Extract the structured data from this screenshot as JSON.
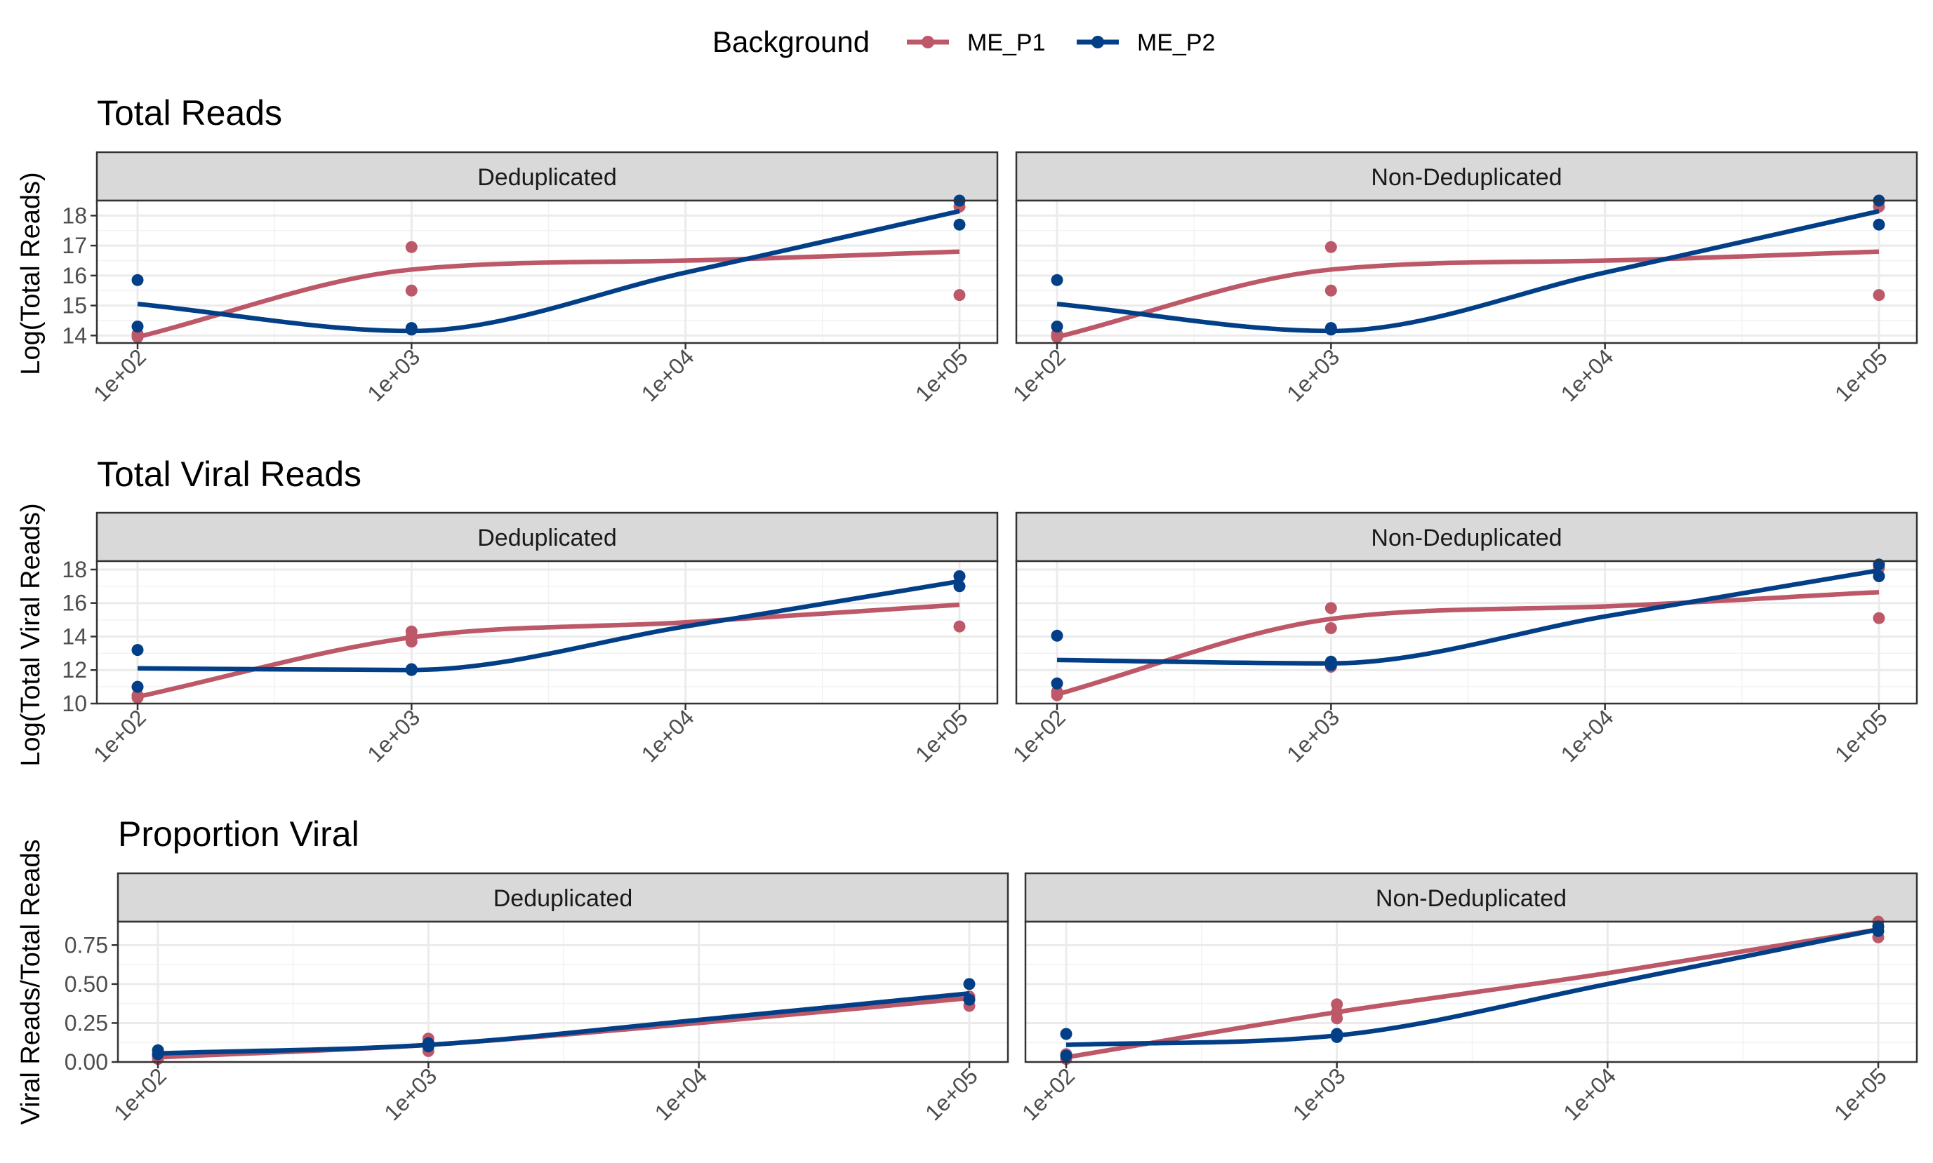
{
  "legend": {
    "title": "Background",
    "items": [
      {
        "label": "ME_P1",
        "color": "#BC5868"
      },
      {
        "label": "ME_P2",
        "color": "#023F87"
      }
    ]
  },
  "facet_labels": [
    "Deduplicated",
    "Non-Deduplicated"
  ],
  "chart_data": [
    {
      "type": "scatter",
      "title": "Total Reads",
      "ylabel": "Log(Total Reads)",
      "x_scale": "log10",
      "x_ticks": [
        100,
        1000,
        10000,
        100000
      ],
      "x_tick_labels": [
        "1e+02",
        "1e+03",
        "1e+04",
        "1e+05"
      ],
      "ylim": [
        13.75,
        18.5
      ],
      "y_ticks": [
        14,
        15,
        16,
        17,
        18
      ],
      "y_tick_labels": [
        "14",
        "15",
        "16",
        "17",
        "18"
      ],
      "grid": true,
      "facets": [
        {
          "label": "Deduplicated",
          "series": [
            {
              "name": "ME_P1",
              "points": [
                [
                  100,
                  13.95
                ],
                [
                  100,
                  14.05
                ],
                [
                  1000,
                  16.95
                ],
                [
                  1000,
                  15.5
                ],
                [
                  1000,
                  14.2
                ],
                [
                  100000,
                  18.3
                ],
                [
                  100000,
                  15.35
                ]
              ],
              "trend": [
                [
                  100,
                  13.95
                ],
                [
                  1000,
                  16.2
                ],
                [
                  10000,
                  16.5
                ],
                [
                  100000,
                  16.8
                ]
              ]
            },
            {
              "name": "ME_P2",
              "points": [
                [
                  100,
                  15.85
                ],
                [
                  100,
                  14.3
                ],
                [
                  1000,
                  14.2
                ],
                [
                  1000,
                  14.25
                ],
                [
                  100000,
                  18.5
                ],
                [
                  100000,
                  17.7
                ]
              ],
              "trend": [
                [
                  100,
                  15.05
                ],
                [
                  1000,
                  14.15
                ],
                [
                  10000,
                  16.1
                ],
                [
                  100000,
                  18.15
                ]
              ]
            }
          ]
        },
        {
          "label": "Non-Deduplicated",
          "series": [
            {
              "name": "ME_P1",
              "points": [
                [
                  100,
                  13.95
                ],
                [
                  100,
                  14.05
                ],
                [
                  1000,
                  16.95
                ],
                [
                  1000,
                  15.5
                ],
                [
                  1000,
                  14.2
                ],
                [
                  100000,
                  18.3
                ],
                [
                  100000,
                  15.35
                ]
              ],
              "trend": [
                [
                  100,
                  13.95
                ],
                [
                  1000,
                  16.2
                ],
                [
                  10000,
                  16.5
                ],
                [
                  100000,
                  16.8
                ]
              ]
            },
            {
              "name": "ME_P2",
              "points": [
                [
                  100,
                  15.85
                ],
                [
                  100,
                  14.3
                ],
                [
                  1000,
                  14.2
                ],
                [
                  1000,
                  14.25
                ],
                [
                  100000,
                  18.5
                ],
                [
                  100000,
                  17.7
                ]
              ],
              "trend": [
                [
                  100,
                  15.05
                ],
                [
                  1000,
                  14.15
                ],
                [
                  10000,
                  16.1
                ],
                [
                  100000,
                  18.15
                ]
              ]
            }
          ]
        }
      ]
    },
    {
      "type": "scatter",
      "title": "Total Viral Reads",
      "ylabel": "Log(Total Viral Reads)",
      "x_scale": "log10",
      "x_ticks": [
        100,
        1000,
        10000,
        100000
      ],
      "x_tick_labels": [
        "1e+02",
        "1e+03",
        "1e+04",
        "1e+05"
      ],
      "ylim": [
        10,
        18.5
      ],
      "y_ticks": [
        10,
        12,
        14,
        16,
        18
      ],
      "y_tick_labels": [
        "10",
        "12",
        "14",
        "16",
        "18"
      ],
      "grid": true,
      "facets": [
        {
          "label": "Deduplicated",
          "series": [
            {
              "name": "ME_P1",
              "points": [
                [
                  100,
                  10.35
                ],
                [
                  100,
                  10.5
                ],
                [
                  1000,
                  14.3
                ],
                [
                  1000,
                  14.0
                ],
                [
                  1000,
                  13.7
                ],
                [
                  100000,
                  17.6
                ],
                [
                  100000,
                  14.6
                ]
              ],
              "trend": [
                [
                  100,
                  10.4
                ],
                [
                  1000,
                  13.95
                ],
                [
                  10000,
                  14.85
                ],
                [
                  100000,
                  15.9
                ]
              ]
            },
            {
              "name": "ME_P2",
              "points": [
                [
                  100,
                  13.2
                ],
                [
                  100,
                  11.0
                ],
                [
                  1000,
                  12.0
                ],
                [
                  1000,
                  12.05
                ],
                [
                  100000,
                  17.6
                ],
                [
                  100000,
                  17.0
                ]
              ],
              "trend": [
                [
                  100,
                  12.1
                ],
                [
                  1000,
                  12.0
                ],
                [
                  10000,
                  14.6
                ],
                [
                  100000,
                  17.3
                ]
              ]
            }
          ]
        },
        {
          "label": "Non-Deduplicated",
          "series": [
            {
              "name": "ME_P1",
              "points": [
                [
                  100,
                  10.5
                ],
                [
                  100,
                  10.7
                ],
                [
                  1000,
                  15.7
                ],
                [
                  1000,
                  14.5
                ],
                [
                  1000,
                  12.2
                ],
                [
                  100000,
                  18.1
                ],
                [
                  100000,
                  15.1
                ]
              ],
              "trend": [
                [
                  100,
                  10.55
                ],
                [
                  1000,
                  15.05
                ],
                [
                  10000,
                  15.8
                ],
                [
                  100000,
                  16.65
                ]
              ]
            },
            {
              "name": "ME_P2",
              "points": [
                [
                  100,
                  14.05
                ],
                [
                  100,
                  11.2
                ],
                [
                  1000,
                  12.5
                ],
                [
                  1000,
                  12.3
                ],
                [
                  100000,
                  18.3
                ],
                [
                  100000,
                  17.6
                ]
              ],
              "trend": [
                [
                  100,
                  12.6
                ],
                [
                  1000,
                  12.4
                ],
                [
                  10000,
                  15.2
                ],
                [
                  100000,
                  17.95
                ]
              ]
            }
          ]
        }
      ]
    },
    {
      "type": "scatter",
      "title": "Proportion Viral",
      "ylabel": "Viral Reads/Total Reads",
      "x_scale": "log10",
      "x_ticks": [
        100,
        1000,
        10000,
        100000
      ],
      "x_tick_labels": [
        "1e+02",
        "1e+03",
        "1e+04",
        "1e+05"
      ],
      "ylim": [
        0,
        0.9
      ],
      "y_ticks": [
        0,
        0.25,
        0.5,
        0.75
      ],
      "y_tick_labels": [
        "0.00",
        "0.25",
        "0.50",
        "0.75"
      ],
      "grid": true,
      "facets": [
        {
          "label": "Deduplicated",
          "series": [
            {
              "name": "ME_P1",
              "points": [
                [
                  100,
                  0.02
                ],
                [
                  100,
                  0.04
                ],
                [
                  1000,
                  0.15
                ],
                [
                  1000,
                  0.12
                ],
                [
                  1000,
                  0.07
                ],
                [
                  100000,
                  0.36
                ],
                [
                  100000,
                  0.42
                ]
              ],
              "trend": [
                [
                  100,
                  0.03
                ],
                [
                  1000,
                  0.11
                ],
                [
                  10000,
                  0.25
                ],
                [
                  100000,
                  0.41
                ]
              ]
            },
            {
              "name": "ME_P2",
              "points": [
                [
                  100,
                  0.075
                ],
                [
                  100,
                  0.05
                ],
                [
                  1000,
                  0.12
                ],
                [
                  1000,
                  0.1
                ],
                [
                  100000,
                  0.5
                ],
                [
                  100000,
                  0.4
                ]
              ],
              "trend": [
                [
                  100,
                  0.055
                ],
                [
                  1000,
                  0.11
                ],
                [
                  10000,
                  0.27
                ],
                [
                  100000,
                  0.44
                ]
              ]
            }
          ]
        },
        {
          "label": "Non-Deduplicated",
          "series": [
            {
              "name": "ME_P1",
              "points": [
                [
                  100,
                  0.02
                ],
                [
                  100,
                  0.05
                ],
                [
                  1000,
                  0.37
                ],
                [
                  1000,
                  0.32
                ],
                [
                  1000,
                  0.28
                ],
                [
                  100000,
                  0.9
                ],
                [
                  100000,
                  0.8
                ]
              ],
              "trend": [
                [
                  100,
                  0.03
                ],
                [
                  1000,
                  0.32
                ],
                [
                  10000,
                  0.57
                ],
                [
                  100000,
                  0.85
                ]
              ]
            },
            {
              "name": "ME_P2",
              "points": [
                [
                  100,
                  0.18
                ],
                [
                  100,
                  0.04
                ],
                [
                  1000,
                  0.18
                ],
                [
                  1000,
                  0.16
                ],
                [
                  100000,
                  0.87
                ],
                [
                  100000,
                  0.84
                ]
              ],
              "trend": [
                [
                  100,
                  0.11
                ],
                [
                  1000,
                  0.17
                ],
                [
                  10000,
                  0.5
                ],
                [
                  100000,
                  0.85
                ]
              ]
            }
          ]
        }
      ]
    }
  ]
}
